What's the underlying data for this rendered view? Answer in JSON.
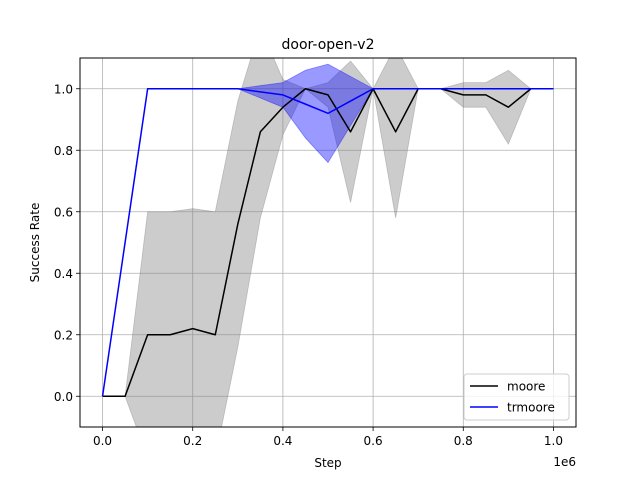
{
  "chart_data": {
    "type": "line",
    "title": "door-open-v2",
    "xlabel": "Step",
    "ylabel": "Success Rate",
    "x_offset_label": "1e6",
    "xlim": [
      -0.05,
      1.05
    ],
    "ylim": [
      -0.1,
      1.1
    ],
    "x_ticks": [
      0.0,
      0.2,
      0.4,
      0.6,
      0.8,
      1.0
    ],
    "x_tick_labels": [
      "0.0",
      "0.2",
      "0.4",
      "0.6",
      "0.8",
      "1.0"
    ],
    "y_ticks": [
      0.0,
      0.2,
      0.4,
      0.6,
      0.8,
      1.0
    ],
    "y_tick_labels": [
      "0.0",
      "0.2",
      "0.4",
      "0.6",
      "0.8",
      "1.0"
    ],
    "grid": true,
    "legend_position": "lower right",
    "x": [
      0.0,
      0.05,
      0.1,
      0.15,
      0.2,
      0.25,
      0.3,
      0.35,
      0.4,
      0.45,
      0.5,
      0.55,
      0.6,
      0.65,
      0.7,
      0.75,
      0.8,
      0.85,
      0.9,
      0.95,
      1.0
    ],
    "series": [
      {
        "name": "moore",
        "color": "#000000",
        "band_color": "#808080",
        "values": [
          0.0,
          0.0,
          0.2,
          0.2,
          0.22,
          0.2,
          0.56,
          0.86,
          0.94,
          1.0,
          0.98,
          0.86,
          1.0,
          0.86,
          1.0,
          1.0,
          0.98,
          0.98,
          0.94,
          1.0,
          1.0
        ],
        "upper": [
          0.0,
          0.0,
          0.6,
          0.6,
          0.61,
          0.6,
          0.96,
          1.2,
          1.03,
          1.0,
          1.02,
          1.09,
          1.0,
          1.14,
          1.0,
          1.0,
          1.02,
          1.02,
          1.06,
          1.0,
          1.0
        ],
        "lower": [
          0.0,
          0.0,
          -0.2,
          -0.2,
          -0.17,
          -0.2,
          0.16,
          0.58,
          0.85,
          1.0,
          0.94,
          0.63,
          1.0,
          0.58,
          1.0,
          1.0,
          0.94,
          0.94,
          0.82,
          1.0,
          1.0
        ]
      },
      {
        "name": "trmoore",
        "color": "#0000ff",
        "band_color": "#0000ff",
        "values": [
          0.0,
          0.5,
          1.0,
          1.0,
          1.0,
          1.0,
          1.0,
          0.99,
          0.98,
          0.95,
          0.92,
          0.96,
          1.0,
          1.0,
          1.0,
          1.0,
          1.0,
          1.0,
          1.0,
          1.0,
          1.0
        ],
        "upper": [
          0.0,
          0.5,
          1.0,
          1.0,
          1.0,
          1.0,
          1.0,
          1.01,
          1.02,
          1.06,
          1.08,
          1.04,
          1.0,
          1.0,
          1.0,
          1.0,
          1.0,
          1.0,
          1.0,
          1.0,
          1.0
        ],
        "lower": [
          0.0,
          0.5,
          1.0,
          1.0,
          1.0,
          1.0,
          1.0,
          0.97,
          0.94,
          0.84,
          0.76,
          0.88,
          1.0,
          1.0,
          1.0,
          1.0,
          1.0,
          1.0,
          1.0,
          1.0,
          1.0
        ]
      }
    ]
  }
}
